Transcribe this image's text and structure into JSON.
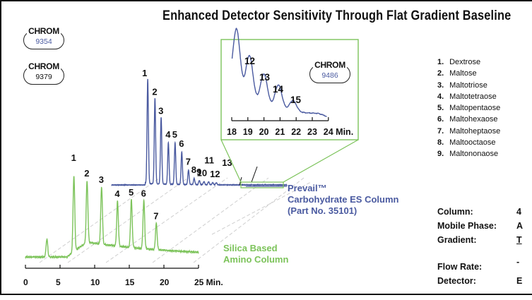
{
  "title": "Enhanced Detector Sensitivity Through Flat Gradient Baseline",
  "badges": [
    {
      "label": "CHROM",
      "number": "9354",
      "color": "#4a5aa0"
    },
    {
      "label": "CHROM",
      "number": "9379",
      "color": "#111111"
    },
    {
      "label": "CHROM",
      "number": "9486",
      "color": "#4a5aa0"
    }
  ],
  "peak_legend": [
    {
      "num": "1.",
      "name": "Dextrose"
    },
    {
      "num": "2.",
      "name": "Maltose"
    },
    {
      "num": "3.",
      "name": "Maltotriose"
    },
    {
      "num": "4.",
      "name": "Maltotetraose"
    },
    {
      "num": "5.",
      "name": "Maltopentaose"
    },
    {
      "num": "6.",
      "name": "Maltohexaose"
    },
    {
      "num": "7.",
      "name": "Maltoheptaose"
    },
    {
      "num": "8.",
      "name": "Maltooctaose"
    },
    {
      "num": "9.",
      "name": "Maltononaose"
    }
  ],
  "conditions": [
    {
      "label": "Column:",
      "value": "4"
    },
    {
      "label": "Mobile Phase:",
      "value": "A"
    },
    {
      "label": "Gradient:",
      "value": "T"
    },
    {
      "label": "Flow Rate:",
      "value": "-"
    },
    {
      "label": "Detector:",
      "value": "E"
    }
  ],
  "prevail_label": [
    "Prevail™",
    "Carbohydrate ES Column",
    "(Part No. 35101)"
  ],
  "silica_label": [
    "Silica Based",
    "Amino Column"
  ],
  "colors": {
    "blue": "#4a5aa0",
    "green": "#7cc35a",
    "frame": "#111111",
    "dash": "#cfcfcf"
  },
  "chart_data": [
    {
      "type": "line",
      "name": "Silica Based Amino Column",
      "xlabel": "Min.",
      "xlim": [
        0,
        25
      ],
      "xticks": [
        0,
        5,
        10,
        15,
        20,
        25
      ],
      "xtick_labels": [
        "0",
        "5",
        "10",
        "15",
        "20",
        "25 Min."
      ],
      "peaks": [
        {
          "label": "1",
          "rt": 7.0,
          "height": 100
        },
        {
          "label": "2",
          "rt": 8.9,
          "height": 82
        },
        {
          "label": "3",
          "rt": 11.0,
          "height": 76
        },
        {
          "label": "4",
          "rt": 13.3,
          "height": 60
        },
        {
          "label": "5",
          "rt": 15.3,
          "height": 64
        },
        {
          "label": "6",
          "rt": 17.1,
          "height": 64
        },
        {
          "label": "7",
          "rt": 18.9,
          "height": 35
        }
      ],
      "extra_peaks": [
        {
          "rt": 3.1,
          "height": 24
        }
      ]
    },
    {
      "type": "line",
      "name": "Prevail Carbohydrate ES Column",
      "peaks": [
        {
          "label": "1",
          "rt": 7.0,
          "height": 100
        },
        {
          "label": "2",
          "rt": 8.4,
          "height": 82
        },
        {
          "label": "3",
          "rt": 9.6,
          "height": 64
        },
        {
          "label": "4",
          "rt": 11.0,
          "height": 40
        },
        {
          "label": "5",
          "rt": 12.3,
          "height": 40
        },
        {
          "label": "6",
          "rt": 13.6,
          "height": 31
        },
        {
          "label": "7",
          "rt": 14.9,
          "height": 14
        },
        {
          "label": "8",
          "rt": 16.0,
          "height": 6
        },
        {
          "label": "9",
          "rt": 17.0,
          "height": 4
        },
        {
          "label": "10",
          "rt": 17.9,
          "height": 3
        },
        {
          "label": "11",
          "rt": 18.8,
          "height": 3
        },
        {
          "label": "12",
          "rt": 19.6,
          "height": 2
        },
        {
          "label": "13",
          "rt": 20.3,
          "height": 2
        }
      ]
    },
    {
      "type": "line",
      "name": "Prevail zoom (18–24 min)",
      "xlabel": "Min.",
      "xlim": [
        18,
        24
      ],
      "xticks": [
        18,
        19,
        20,
        21,
        22,
        23,
        24
      ],
      "xtick_labels": [
        "18",
        "19",
        "20",
        "21",
        "22",
        "23",
        "24 Min."
      ],
      "peaks": [
        {
          "label": "",
          "rt": 18.3,
          "height": 100
        },
        {
          "label": "12",
          "rt": 19.1,
          "height": 72
        },
        {
          "label": "13",
          "rt": 20.0,
          "height": 52
        },
        {
          "label": "14",
          "rt": 20.9,
          "height": 40
        },
        {
          "label": "15",
          "rt": 21.8,
          "height": 18
        }
      ]
    }
  ]
}
